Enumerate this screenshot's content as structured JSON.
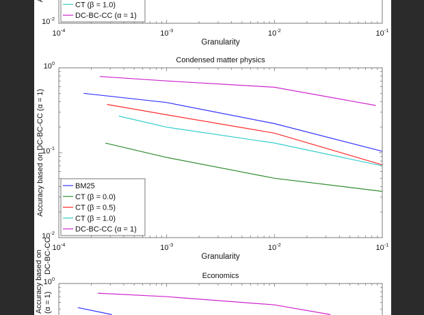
{
  "colors": {
    "frame": "#2b2b2b",
    "BM25": "#3333ff",
    "CT0": "#2e8b2e",
    "CT05": "#ff2a2a",
    "CT1": "#33cccc",
    "DC": "#cc22cc"
  },
  "chart_data": [
    {
      "type": "line",
      "title": "",
      "xlabel": "Granularity",
      "ylabel": "Accuracy based on DC-BC-CC (α = 1)",
      "xscale": "log",
      "yscale": "log",
      "xlim": [
        0.0001,
        0.1
      ],
      "ylim": [
        0.01,
        1
      ],
      "xticks": [
        "10^-4",
        "10^-3",
        "10^-2",
        "10^-1"
      ],
      "yticks": [
        "10^-2"
      ],
      "legend": {
        "placement": "bottom-left",
        "entries": [
          {
            "label": "CT (β = 1.0)",
            "color_key": "CT1"
          },
          {
            "label": "DC-BC-CC (α = 1)",
            "color_key": "DC"
          }
        ]
      },
      "series": []
    },
    {
      "type": "line",
      "title": "Condensed matter physics",
      "xlabel": "Granularity",
      "ylabel": "Accuracy based on DC-BC-CC (α = 1)",
      "xscale": "log",
      "yscale": "log",
      "xlim": [
        0.0001,
        0.1
      ],
      "ylim": [
        0.01,
        1
      ],
      "xticks": [
        "10^-4",
        "10^-3",
        "10^-2",
        "10^-1"
      ],
      "yticks": [
        "10^-2",
        "10^-1",
        "10^0"
      ],
      "legend": {
        "placement": "bottom-left",
        "entries": [
          {
            "label": "BM25",
            "color_key": "BM25"
          },
          {
            "label": "CT (β = 0.0)",
            "color_key": "CT0"
          },
          {
            "label": "CT (β = 0.5)",
            "color_key": "CT05"
          },
          {
            "label": "CT (β = 1.0)",
            "color_key": "CT1"
          },
          {
            "label": "DC-BC-CC (α = 1)",
            "color_key": "DC"
          }
        ]
      },
      "series": [
        {
          "name": "BM25",
          "color_key": "BM25",
          "x": [
            0.00017,
            0.001,
            0.01,
            0.1
          ],
          "y": [
            0.5,
            0.39,
            0.22,
            0.104
          ]
        },
        {
          "name": "CT (β = 0.0)",
          "color_key": "CT0",
          "x": [
            0.00027,
            0.001,
            0.01,
            0.1
          ],
          "y": [
            0.13,
            0.088,
            0.05,
            0.035
          ]
        },
        {
          "name": "CT (β = 0.5)",
          "color_key": "CT05",
          "x": [
            0.00028,
            0.001,
            0.01,
            0.1
          ],
          "y": [
            0.37,
            0.28,
            0.17,
            0.072
          ]
        },
        {
          "name": "CT (β = 1.0)",
          "color_key": "CT1",
          "x": [
            0.00036,
            0.001,
            0.01,
            0.1
          ],
          "y": [
            0.27,
            0.2,
            0.13,
            0.07
          ]
        },
        {
          "name": "DC-BC-CC (α = 1)",
          "color_key": "DC",
          "x": [
            0.00024,
            0.001,
            0.01,
            0.087
          ],
          "y": [
            0.79,
            0.7,
            0.59,
            0.36
          ]
        }
      ]
    },
    {
      "type": "line",
      "title": "Economics",
      "xlabel": "",
      "ylabel": "Accuracy based on DC-BC-CC (α = 1)",
      "xscale": "log",
      "yscale": "log",
      "xlim": [
        0.0001,
        0.1
      ],
      "ylim": [
        0.01,
        1
      ],
      "xticks": [],
      "yticks": [
        "10^0"
      ],
      "legend": {
        "placement": "",
        "entries": []
      },
      "series": [
        {
          "name": "BM25",
          "color_key": "BM25",
          "x": [
            0.00015,
            0.00031
          ],
          "y": [
            0.52,
            0.43
          ]
        },
        {
          "name": "DC-BC-CC (α = 1)",
          "color_key": "DC",
          "x": [
            0.00023,
            0.001,
            0.01,
            0.033
          ],
          "y": [
            0.77,
            0.7,
            0.56,
            0.43
          ]
        }
      ]
    }
  ]
}
